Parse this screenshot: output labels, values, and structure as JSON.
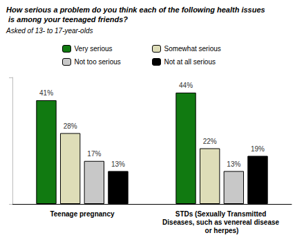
{
  "chart_data": {
    "type": "bar",
    "title": "How serious a problem do you think each of the following health issues is among your teenaged friends?",
    "subtitle": "Asked of 13- to 17-year-olds",
    "categories": [
      "Teenage pregnancy",
      "STDs (Sexually Transmitted Diseases, such as venereal disease or herpes)"
    ],
    "series": [
      {
        "name": "Very serious",
        "color": "#117a11",
        "values": [
          41,
          44
        ],
        "value_labels": [
          "41%",
          "44%"
        ]
      },
      {
        "name": "Somewhat serious",
        "color": "#deddb8",
        "values": [
          28,
          22
        ],
        "value_labels": [
          "28%",
          "22%"
        ]
      },
      {
        "name": "Not too serious",
        "color": "#c8c8c8",
        "values": [
          17,
          13
        ],
        "value_labels": [
          "17%",
          "13%"
        ]
      },
      {
        "name": "Not at all serious",
        "color": "#000000",
        "values": [
          13,
          19
        ],
        "value_labels": [
          "13%",
          "19%"
        ]
      }
    ],
    "ylim": [
      0,
      50
    ],
    "yticks": [
      0,
      50
    ],
    "grid": false,
    "legend": "top",
    "data_labels": true,
    "tick_labels": "x"
  }
}
